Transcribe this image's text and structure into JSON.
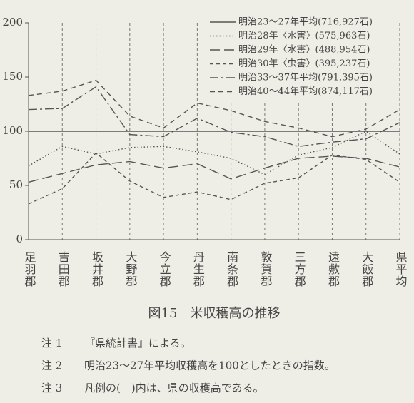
{
  "chart_data": {
    "type": "line",
    "categories": [
      "足羽郡",
      "吉田郡",
      "坂井郡",
      "大野郡",
      "今立郡",
      "丹生郡",
      "南条郡",
      "敦賀郡",
      "三方郡",
      "遠敷郡",
      "大飯郡",
      "県平均"
    ],
    "series": [
      {
        "name": "明治23～27年平均(716,927石)",
        "color": "#555",
        "dash": "solid",
        "values": [
          100,
          100,
          100,
          100,
          100,
          100,
          100,
          100,
          100,
          100,
          100,
          100
        ]
      },
      {
        "name": "明治28年〈水害〉(575,963石)",
        "color": "#555",
        "dash": "dotted",
        "values": [
          68,
          86,
          79,
          85,
          86,
          81,
          75,
          60,
          78,
          85,
          100,
          79
        ]
      },
      {
        "name": "明治29年〈水害〉(488,954石)",
        "color": "#555",
        "dash": "longdash",
        "values": [
          53,
          61,
          69,
          72,
          66,
          70,
          56,
          66,
          75,
          77,
          75,
          67
        ]
      },
      {
        "name": "明治30年〈虫害〉(395,237石)",
        "color": "#555",
        "dash": "shortdash",
        "values": [
          33,
          47,
          80,
          54,
          39,
          44,
          37,
          52,
          57,
          78,
          74,
          53
        ]
      },
      {
        "name": "明治33～37年平均(791,395石)",
        "color": "#555",
        "dash": "dashdot",
        "values": [
          120,
          121,
          141,
          97,
          95,
          112,
          99,
          95,
          86,
          90,
          93,
          108
        ]
      },
      {
        "name": "明治40～44年平均(874,117石)",
        "color": "#555",
        "dash": "mediumdash",
        "values": [
          133,
          137,
          147,
          114,
          103,
          126,
          119,
          109,
          103,
          95,
          102,
          120
        ]
      }
    ],
    "ylim": [
      0,
      200
    ],
    "yticks": [
      0,
      50,
      100,
      150,
      200
    ],
    "grid": true,
    "caption": "図15　米収穫高の推移"
  },
  "notes": [
    {
      "label": "注 1",
      "text": "『県統計書』による。"
    },
    {
      "label": "注 2",
      "text": "明治23～27年平均収穫高を100としたときの指数。"
    },
    {
      "label": "注 3",
      "text": "凡例の(　)内は、県の収穫高である。"
    }
  ]
}
